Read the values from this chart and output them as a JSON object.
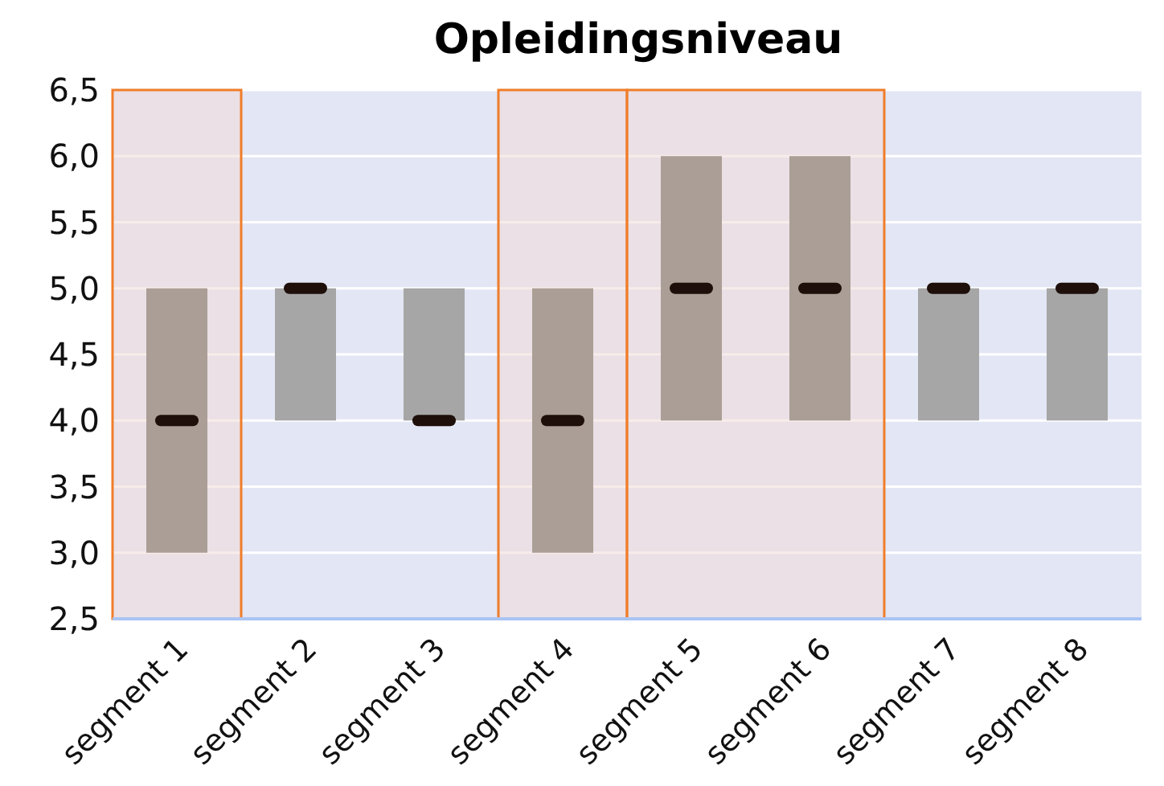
{
  "chart_data": {
    "type": "box",
    "title": "Opleidingsniveau",
    "categories": [
      "segment 1",
      "segment 2",
      "segment 3",
      "segment 4",
      "segment 5",
      "segment 6",
      "segment 7",
      "segment 8"
    ],
    "series": [
      {
        "colors": [
          "#ab9e96",
          "#a6a6a6",
          "#a6a6a6",
          "#ab9e96",
          "#ab9e96",
          "#ab9e96",
          "#a6a6a6",
          "#a6a6a6"
        ],
        "boxes": [
          {
            "low": 3,
            "q1": 3,
            "median": 4,
            "q3": 5,
            "high": 5
          },
          {
            "low": 4,
            "q1": 4,
            "median": 5,
            "q3": 5,
            "high": 5
          },
          {
            "low": 4,
            "q1": 4,
            "median": 4,
            "q3": 5,
            "high": 5
          },
          {
            "low": 3,
            "q1": 3,
            "median": 4,
            "q3": 5,
            "high": 5
          },
          {
            "low": 4,
            "q1": 4,
            "median": 5,
            "q3": 6,
            "high": 6
          },
          {
            "low": 4,
            "q1": 4,
            "median": 5,
            "q3": 6,
            "high": 6
          },
          {
            "low": 4,
            "q1": 4,
            "median": 5,
            "q3": 5,
            "high": 5
          },
          {
            "low": 4,
            "q1": 4,
            "median": 5,
            "q3": 5,
            "high": 5
          }
        ]
      }
    ],
    "bands": [
      {
        "axis": "x",
        "from": "segment 1",
        "to": "segment 1",
        "color": "#f07d2a"
      },
      {
        "axis": "x",
        "from": "segment 4",
        "to": "segment 4",
        "color": "#f07d2a"
      },
      {
        "axis": "x",
        "from": "segment 5",
        "to": "segment 6",
        "color": "#f07d2a"
      }
    ],
    "ylim": [
      2.5,
      6.5
    ],
    "yticks": [
      {
        "value": 2.5,
        "label": "2,5"
      },
      {
        "value": 3,
        "label": "3,0"
      },
      {
        "value": 3.5,
        "label": "3,5"
      },
      {
        "value": 4,
        "label": "4,0"
      },
      {
        "value": 4.5,
        "label": "4,5"
      },
      {
        "value": 5,
        "label": "5,0"
      },
      {
        "value": 5.5,
        "label": "5,5"
      },
      {
        "value": 6,
        "label": "6,0"
      },
      {
        "value": 6.5,
        "label": "6,5"
      }
    ],
    "grid": "y"
  }
}
